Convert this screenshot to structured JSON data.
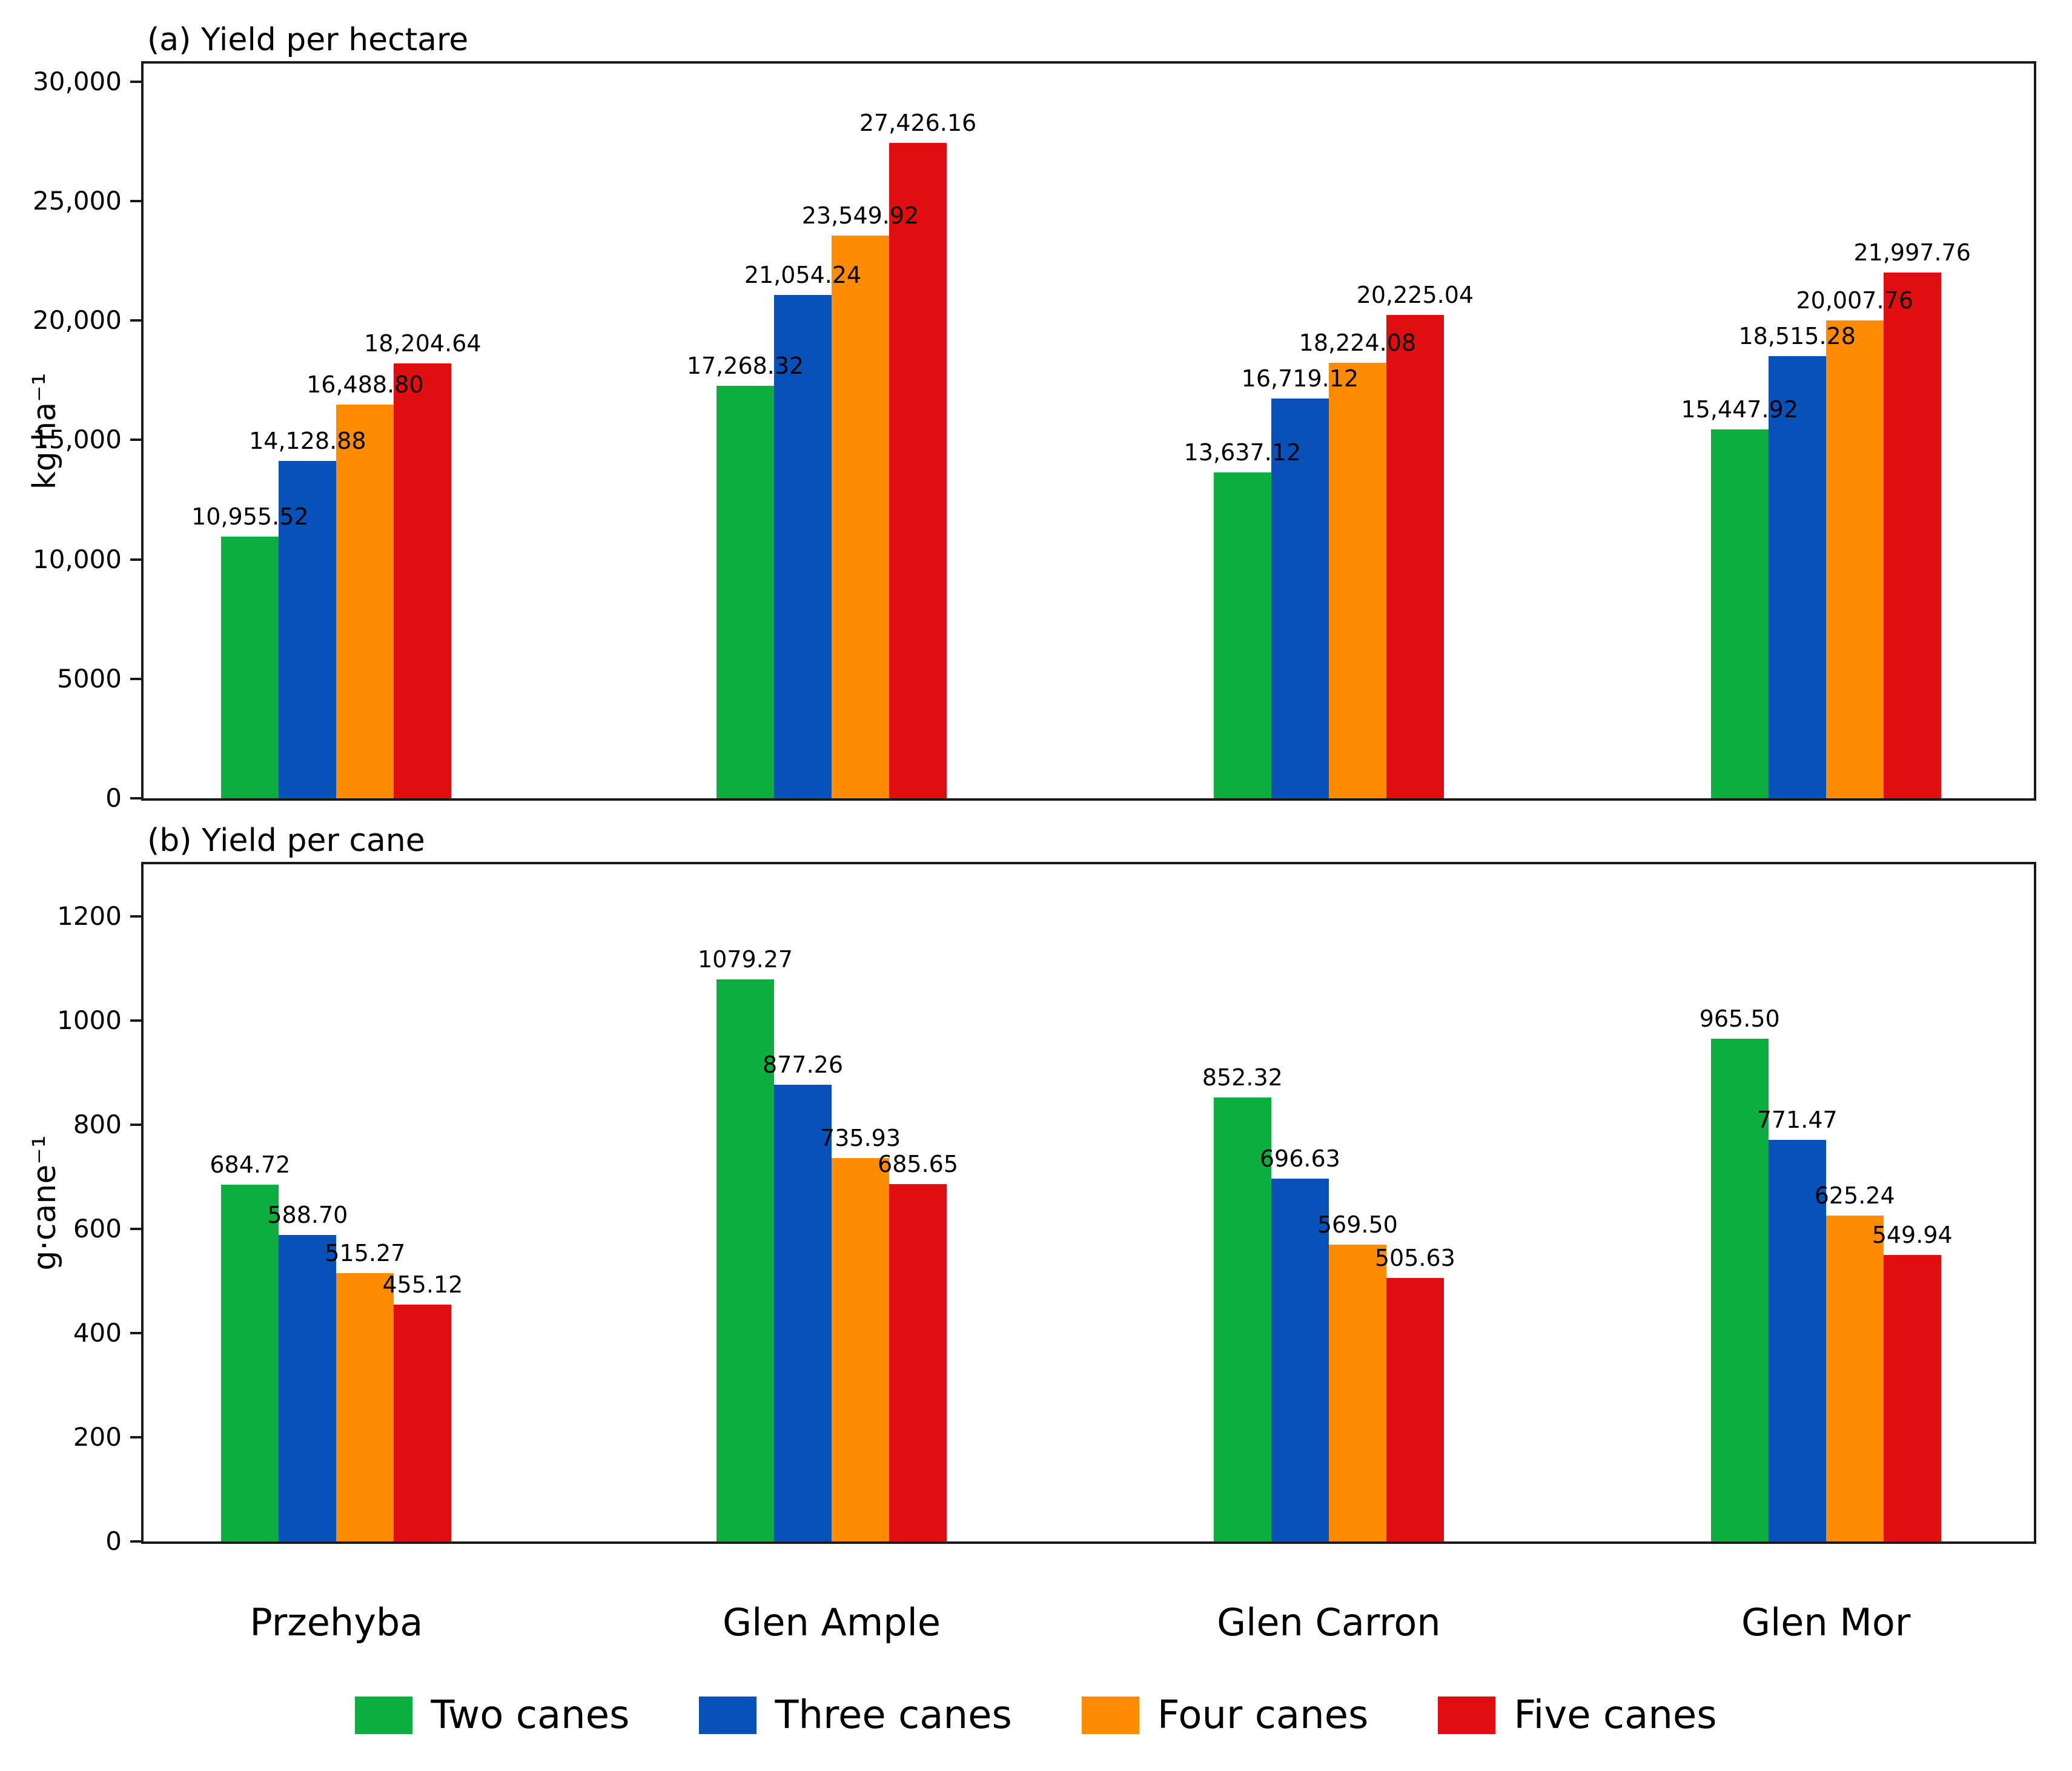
{
  "figure": {
    "background": "#ffffff",
    "categories": [
      "Przehyba",
      "Glen Ample",
      "Glen Carron",
      "Glen Mor"
    ],
    "legend": [
      {
        "label": "Two canes",
        "color": "#0CAF3F"
      },
      {
        "label": "Three canes",
        "color": "#0751B8"
      },
      {
        "label": "Four canes",
        "color": "#FF8C00"
      },
      {
        "label": "Five canes",
        "color": "#E00D11"
      }
    ]
  },
  "chart_data": [
    {
      "type": "bar",
      "title": "(a) Yield per hectare",
      "xlabel": "",
      "ylabel": "kg·ha⁻¹",
      "categories": [
        "Przehyba",
        "Glen Ample",
        "Glen Carron",
        "Glen Mor"
      ],
      "series": [
        {
          "name": "Two canes",
          "color": "#0CAF3F",
          "values": [
            10955.52,
            17268.32,
            13637.12,
            15447.92
          ],
          "labels": [
            "10,955.52",
            "17,268.32",
            "13,637.12",
            "15,447.92"
          ]
        },
        {
          "name": "Three canes",
          "color": "#0751B8",
          "values": [
            14128.88,
            21054.24,
            16719.12,
            18515.28
          ],
          "labels": [
            "14,128.88",
            "21,054.24",
            "16,719.12",
            "18,515.28"
          ]
        },
        {
          "name": "Four canes",
          "color": "#FF8C00",
          "values": [
            16488.8,
            23549.92,
            18224.08,
            20007.76
          ],
          "labels": [
            "16,488.80",
            "23,549.92",
            "18,224.08",
            "20,007.76"
          ]
        },
        {
          "name": "Five canes",
          "color": "#E00D11",
          "values": [
            18204.64,
            27426.16,
            20225.04,
            21997.76
          ],
          "labels": [
            "18,204.64",
            "27,426.16",
            "20,225.04",
            "21,997.76"
          ]
        }
      ],
      "ylim": [
        0,
        30750
      ],
      "yticks": {
        "values": [
          0,
          5000,
          10000,
          15000,
          20000,
          25000,
          30000
        ],
        "labels": [
          "0",
          "5000",
          "10,000",
          "15,000",
          "20,000",
          "25,000",
          "30,000"
        ]
      },
      "grid": false,
      "legend_position": "bottom-shared"
    },
    {
      "type": "bar",
      "title": "(b) Yield per cane",
      "xlabel": "",
      "ylabel": "g·cane⁻¹",
      "categories": [
        "Przehyba",
        "Glen Ample",
        "Glen Carron",
        "Glen Mor"
      ],
      "series": [
        {
          "name": "Two canes",
          "color": "#0CAF3F",
          "values": [
            684.72,
            1079.27,
            852.32,
            965.5
          ],
          "labels": [
            "684.72",
            "1079.27",
            "852.32",
            "965.50"
          ]
        },
        {
          "name": "Three canes",
          "color": "#0751B8",
          "values": [
            588.7,
            877.26,
            696.63,
            771.47
          ],
          "labels": [
            "588.70",
            "877.26",
            "696.63",
            "771.47"
          ]
        },
        {
          "name": "Four canes",
          "color": "#FF8C00",
          "values": [
            515.27,
            735.93,
            569.5,
            625.24
          ],
          "labels": [
            "515.27",
            "735.93",
            "569.50",
            "625.24"
          ]
        },
        {
          "name": "Five canes",
          "color": "#E00D11",
          "values": [
            455.12,
            685.65,
            505.63,
            549.94
          ],
          "labels": [
            "455.12",
            "685.65",
            "505.63",
            "549.94"
          ]
        }
      ],
      "ylim": [
        0,
        1300
      ],
      "yticks": {
        "values": [
          0,
          200,
          400,
          600,
          800,
          1000,
          1200
        ],
        "labels": [
          "0",
          "200",
          "400",
          "600",
          "800",
          "1000",
          "1200"
        ]
      },
      "grid": false,
      "legend_position": "bottom-shared"
    }
  ]
}
